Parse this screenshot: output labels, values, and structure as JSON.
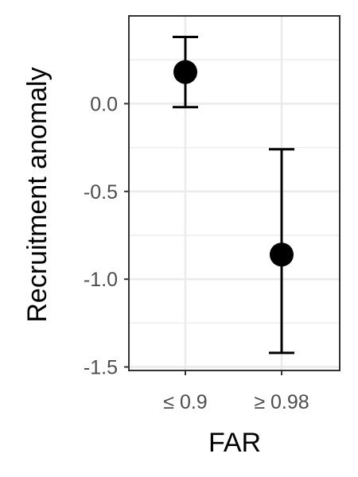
{
  "chart_data": {
    "type": "scatter",
    "title": "",
    "xlabel": "FAR",
    "ylabel": "Recruitment anomaly",
    "categories": [
      "≤ 0.9",
      "≥ 0.98"
    ],
    "points": [
      {
        "category": "≤ 0.9",
        "y": 0.18,
        "lower": -0.02,
        "upper": 0.38
      },
      {
        "category": "≥ 0.98",
        "y": -0.86,
        "lower": -1.42,
        "upper": -0.26
      }
    ],
    "ylim": [
      -1.5,
      0.5
    ],
    "yticks": [
      0.0,
      -0.5,
      -1.0,
      -1.5
    ],
    "ytick_labels": [
      "0.0",
      "-0.5",
      "-1.0",
      "-1.5"
    ],
    "grid": true,
    "legend": "none",
    "colors": {
      "point": "#000000",
      "grid": "#ebebeb",
      "panel_border": "#333333",
      "tick_text": "#4d4d4d"
    }
  }
}
